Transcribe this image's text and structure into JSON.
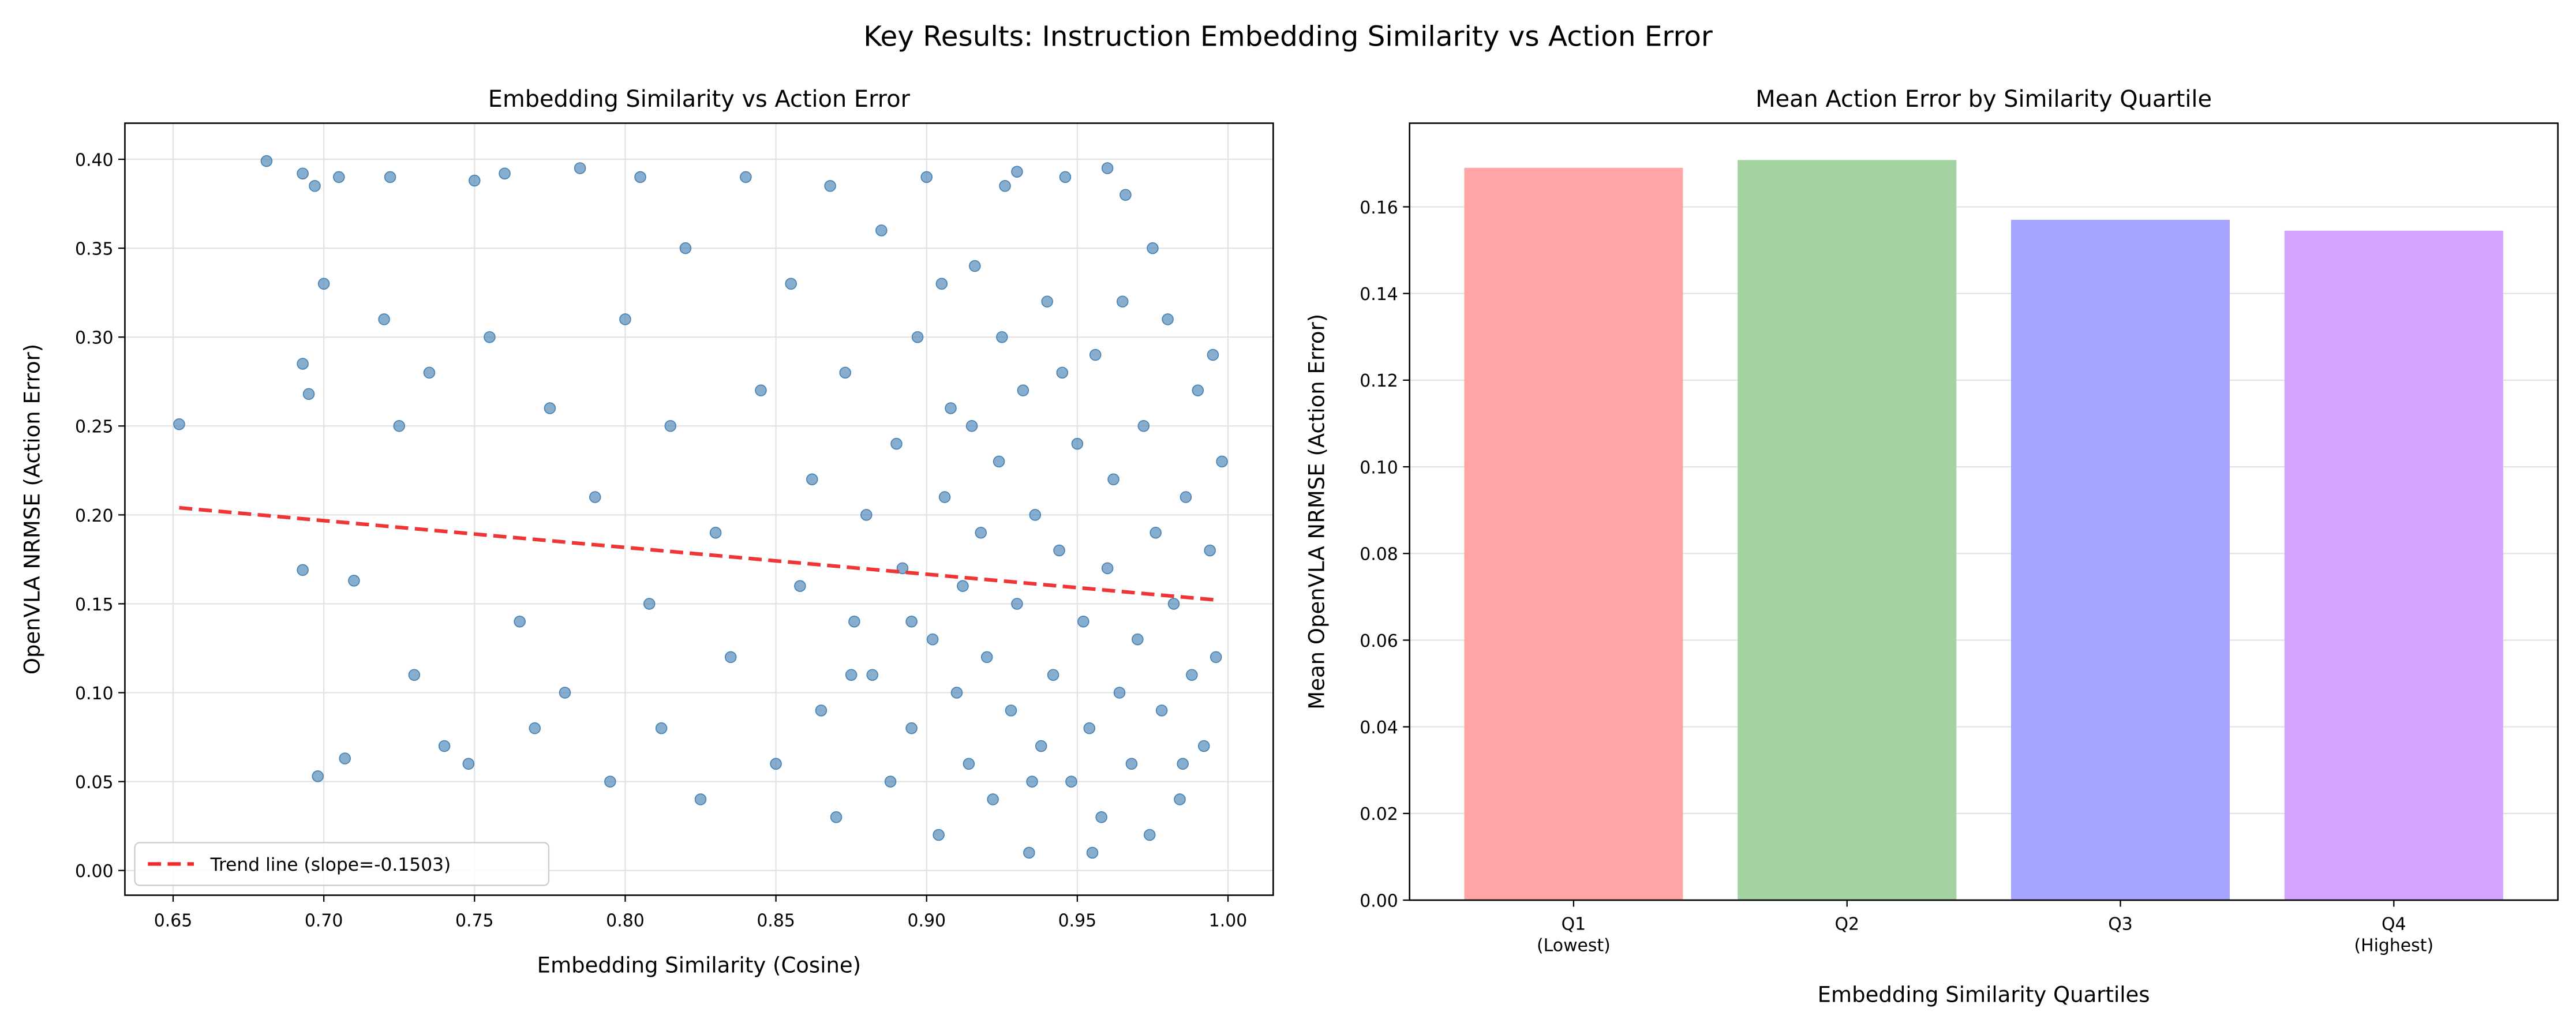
{
  "title": "Key Results: Instruction Embedding Similarity vs Action Error",
  "chart_data": [
    {
      "type": "scatter",
      "title": "Embedding Similarity vs Action Error",
      "x_label": "Embedding Similarity (Cosine)",
      "y_label": "OpenVLA NRMSE (Action Error)",
      "color": "#4682b4",
      "x": [
        0.652,
        0.681,
        0.693,
        0.697,
        0.7,
        0.705,
        0.693,
        0.695,
        0.693,
        0.71,
        0.698,
        0.707,
        0.72,
        0.725,
        0.722,
        0.73,
        0.735,
        0.74,
        0.748,
        0.75,
        0.755,
        0.76,
        0.765,
        0.77,
        0.775,
        0.78,
        0.785,
        0.79,
        0.795,
        0.8,
        0.805,
        0.808,
        0.812,
        0.815,
        0.82,
        0.825,
        0.83,
        0.835,
        0.84,
        0.845,
        0.85,
        0.855,
        0.858,
        0.862,
        0.865,
        0.868,
        0.87,
        0.873,
        0.876,
        0.88,
        0.882,
        0.885,
        0.888,
        0.89,
        0.892,
        0.895,
        0.897,
        0.9,
        0.902,
        0.904,
        0.906,
        0.908,
        0.91,
        0.912,
        0.914,
        0.916,
        0.918,
        0.92,
        0.922,
        0.924,
        0.926,
        0.928,
        0.93,
        0.932,
        0.934,
        0.936,
        0.938,
        0.94,
        0.942,
        0.944,
        0.946,
        0.948,
        0.95,
        0.952,
        0.954,
        0.956,
        0.958,
        0.96,
        0.962,
        0.964,
        0.966,
        0.968,
        0.97,
        0.972,
        0.974,
        0.976,
        0.978,
        0.98,
        0.982,
        0.984,
        0.986,
        0.988,
        0.99,
        0.992,
        0.994,
        0.996,
        0.998,
        0.995,
        0.96,
        0.93,
        0.905,
        0.925,
        0.945,
        0.965,
        0.975,
        0.915,
        0.935,
        0.955,
        0.985,
        0.895,
        0.875
      ],
      "y": [
        0.251,
        0.399,
        0.392,
        0.385,
        0.33,
        0.39,
        0.285,
        0.268,
        0.169,
        0.163,
        0.053,
        0.063,
        0.31,
        0.25,
        0.39,
        0.11,
        0.28,
        0.07,
        0.06,
        0.388,
        0.3,
        0.392,
        0.14,
        0.08,
        0.26,
        0.1,
        0.395,
        0.21,
        0.05,
        0.31,
        0.39,
        0.15,
        0.08,
        0.25,
        0.35,
        0.04,
        0.19,
        0.12,
        0.39,
        0.27,
        0.06,
        0.33,
        0.16,
        0.22,
        0.09,
        0.385,
        0.03,
        0.28,
        0.14,
        0.2,
        0.11,
        0.36,
        0.05,
        0.24,
        0.17,
        0.08,
        0.3,
        0.39,
        0.13,
        0.02,
        0.21,
        0.26,
        0.1,
        0.16,
        0.06,
        0.34,
        0.19,
        0.12,
        0.04,
        0.23,
        0.385,
        0.09,
        0.15,
        0.27,
        0.01,
        0.2,
        0.07,
        0.32,
        0.11,
        0.18,
        0.39,
        0.05,
        0.24,
        0.14,
        0.08,
        0.29,
        0.03,
        0.17,
        0.22,
        0.1,
        0.38,
        0.06,
        0.13,
        0.25,
        0.02,
        0.19,
        0.09,
        0.31,
        0.15,
        0.04,
        0.21,
        0.11,
        0.27,
        0.07,
        0.18,
        0.12,
        0.23,
        0.29,
        0.395,
        0.393,
        0.33,
        0.3,
        0.28,
        0.32,
        0.35,
        0.25,
        0.05,
        0.01,
        0.06,
        0.14,
        0.11
      ],
      "trend_line": {
        "name": "Trend line (slope=-0.1503)",
        "color": "#ee2a2a",
        "x": [
          0.652,
          0.997
        ],
        "y": [
          0.204,
          0.152
        ]
      },
      "xlim": [
        0.634,
        1.015
      ],
      "ylim": [
        -0.0139,
        0.4203
      ],
      "xticks": [
        0.65,
        {
          "value": 0.7,
          "label": "0.70"
        },
        0.75,
        {
          "value": 0.8,
          "label": "0.80"
        },
        0.85,
        {
          "value": 0.9,
          "label": "0.90"
        },
        0.95,
        {
          "value": 1,
          "label": "1.00"
        }
      ],
      "yticks": [
        {
          "value": 0,
          "label": "0.00"
        },
        0.05,
        {
          "value": 0.1,
          "label": "0.10"
        },
        0.15,
        {
          "value": 0.2,
          "label": "0.20"
        },
        0.25,
        {
          "value": 0.3,
          "label": "0.30"
        },
        0.35,
        {
          "value": 0.4,
          "label": "0.40"
        }
      ],
      "grid": true,
      "legend": "lower left"
    },
    {
      "type": "bar",
      "title": "Mean Action Error by Similarity Quartile",
      "x_label": "Embedding Similarity Quartiles",
      "y_label": "Mean OpenVLA NRMSE (Action Error)",
      "categories": [
        "Q1",
        "Q2",
        "Q3",
        "Q4"
      ],
      "category_sublabels": [
        "(Lowest)",
        null,
        null,
        "(Highest)"
      ],
      "values": [
        0.169,
        0.1708,
        0.157,
        0.1545
      ],
      "colors": [
        "#ffa5a5",
        "#a3d3a0",
        "#a5a5ff",
        "#d3a5ff"
      ],
      "ylim": [
        0,
        0.1793
      ],
      "yticks": [
        {
          "value": 0,
          "label": "0.00"
        },
        0.02,
        0.04,
        0.06,
        0.08,
        {
          "value": 0.1,
          "label": "0.10"
        },
        0.12,
        0.14,
        0.16
      ],
      "grid": true
    }
  ]
}
